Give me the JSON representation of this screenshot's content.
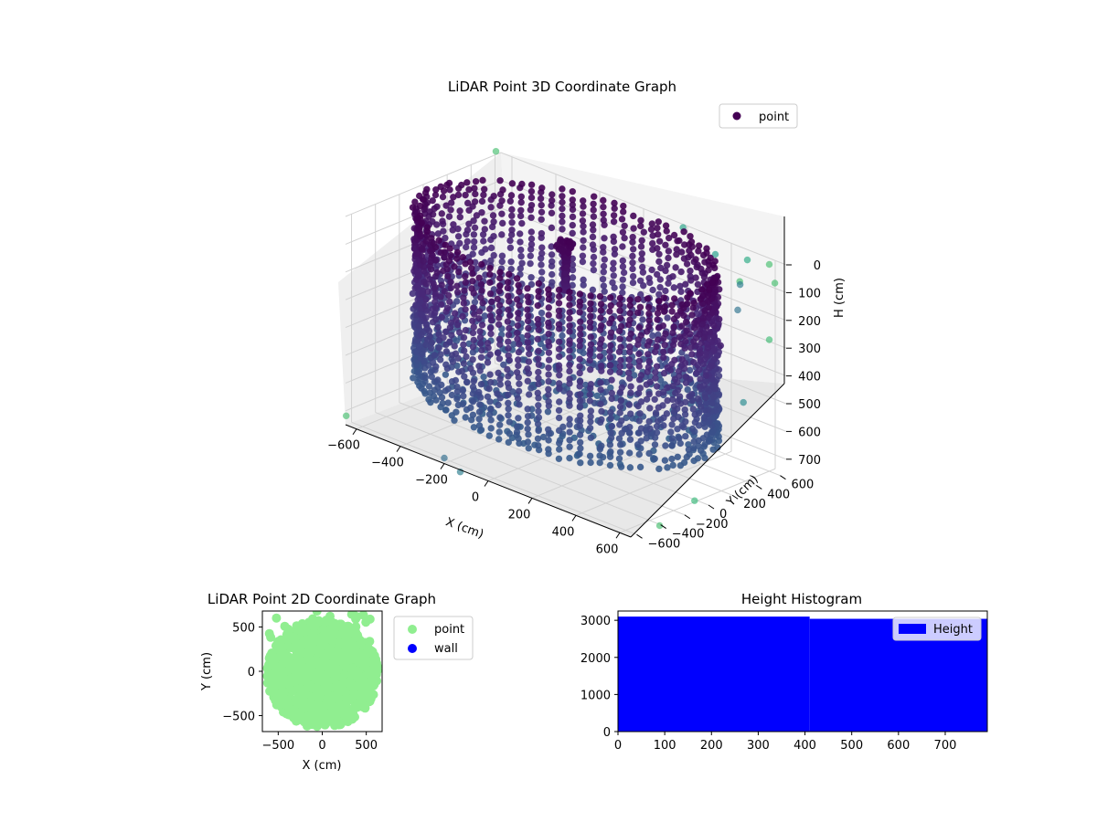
{
  "chart_data": [
    {
      "type": "scatter3d",
      "title": "LiDAR Point 3D Coordinate Graph",
      "xlabel": "X (cm)",
      "ylabel": "Y (cm)",
      "zlabel": "H (cm)",
      "xticks": [
        "−600",
        "−400",
        "−200",
        "0",
        "200",
        "400",
        "600"
      ],
      "yticks": [
        "−600",
        "−400",
        "−200",
        "0",
        "200",
        "400",
        "600"
      ],
      "zticks": [
        "0",
        "100",
        "200",
        "300",
        "400",
        "500",
        "600",
        "700"
      ],
      "xlim": [
        -650,
        650
      ],
      "ylim": [
        -650,
        650
      ],
      "zlim": [
        0,
        750
      ],
      "z_axis_inverted": true,
      "colormap": "viridis",
      "legend": {
        "position": "top-right",
        "entries": [
          {
            "label": "point",
            "color": "#440154"
          }
        ]
      },
      "structure": {
        "ring_radius": 600,
        "ring_height_range": [
          0,
          620
        ],
        "center_column": {
          "x": 0,
          "y": 0,
          "height_range": [
            0,
            180
          ]
        }
      },
      "outliers": [
        {
          "x": 500,
          "y": 600,
          "h": 20
        },
        {
          "x": 560,
          "y": 430,
          "h": 60
        },
        {
          "x": 620,
          "y": 300,
          "h": 110
        },
        {
          "x": 640,
          "y": 120,
          "h": 200
        },
        {
          "x": 650,
          "y": -20,
          "h": 280
        },
        {
          "x": 620,
          "y": -200,
          "h": 350
        },
        {
          "x": 300,
          "y": 700,
          "h": 80
        },
        {
          "x": 120,
          "y": 760,
          "h": 50
        },
        {
          "x": 400,
          "y": 720,
          "h": 150
        },
        {
          "x": 700,
          "y": 200,
          "h": 400
        },
        {
          "x": 680,
          "y": 500,
          "h": 30
        },
        {
          "x": 720,
          "y": 380,
          "h": 200
        },
        {
          "x": -620,
          "y": -700,
          "h": 700
        },
        {
          "x": -200,
          "y": -650,
          "h": 730
        },
        {
          "x": -100,
          "y": -700,
          "h": 740
        },
        {
          "x": 750,
          "y": -300,
          "h": 650
        },
        {
          "x": 700,
          "y": -500,
          "h": 720
        },
        {
          "x": -700,
          "y": 700,
          "h": 20
        },
        {
          "x": 600,
          "y": 600,
          "h": 5
        }
      ]
    },
    {
      "type": "scatter",
      "title": "LiDAR Point 2D Coordinate Graph",
      "xlabel": "X (cm)",
      "ylabel": "Y (cm)",
      "xticks": [
        -500,
        0,
        500
      ],
      "yticks": [
        -500,
        0,
        500
      ],
      "xlim": [
        -680,
        680
      ],
      "ylim": [
        -680,
        680
      ],
      "legend": {
        "position": "outside-right",
        "entries": [
          {
            "label": "point",
            "color": "#90ee90"
          },
          {
            "label": "wall",
            "color": "#0000ff"
          }
        ]
      },
      "series": [
        {
          "name": "point",
          "color": "#90ee90",
          "region": {
            "center_x": 0,
            "center_y": -30,
            "radius_x": 620,
            "radius_y": 600
          }
        },
        {
          "name": "wall",
          "color": "#0000ff",
          "points": []
        }
      ]
    },
    {
      "type": "bar",
      "title": "Height Histogram",
      "xticks": [
        0,
        100,
        200,
        300,
        400,
        500,
        600,
        700
      ],
      "yticks": [
        0,
        1000,
        2000,
        3000
      ],
      "xlim": [
        0,
        790
      ],
      "ylim": [
        0,
        3250
      ],
      "color": "#0000ff",
      "legend": {
        "position": "top-right",
        "entries": [
          {
            "label": "Height",
            "color": "#0000ff"
          }
        ]
      },
      "bins": [
        {
          "x0": 0,
          "x1": 410,
          "value": 3100
        },
        {
          "x0": 410,
          "x1": 790,
          "value": 3040
        }
      ]
    }
  ]
}
